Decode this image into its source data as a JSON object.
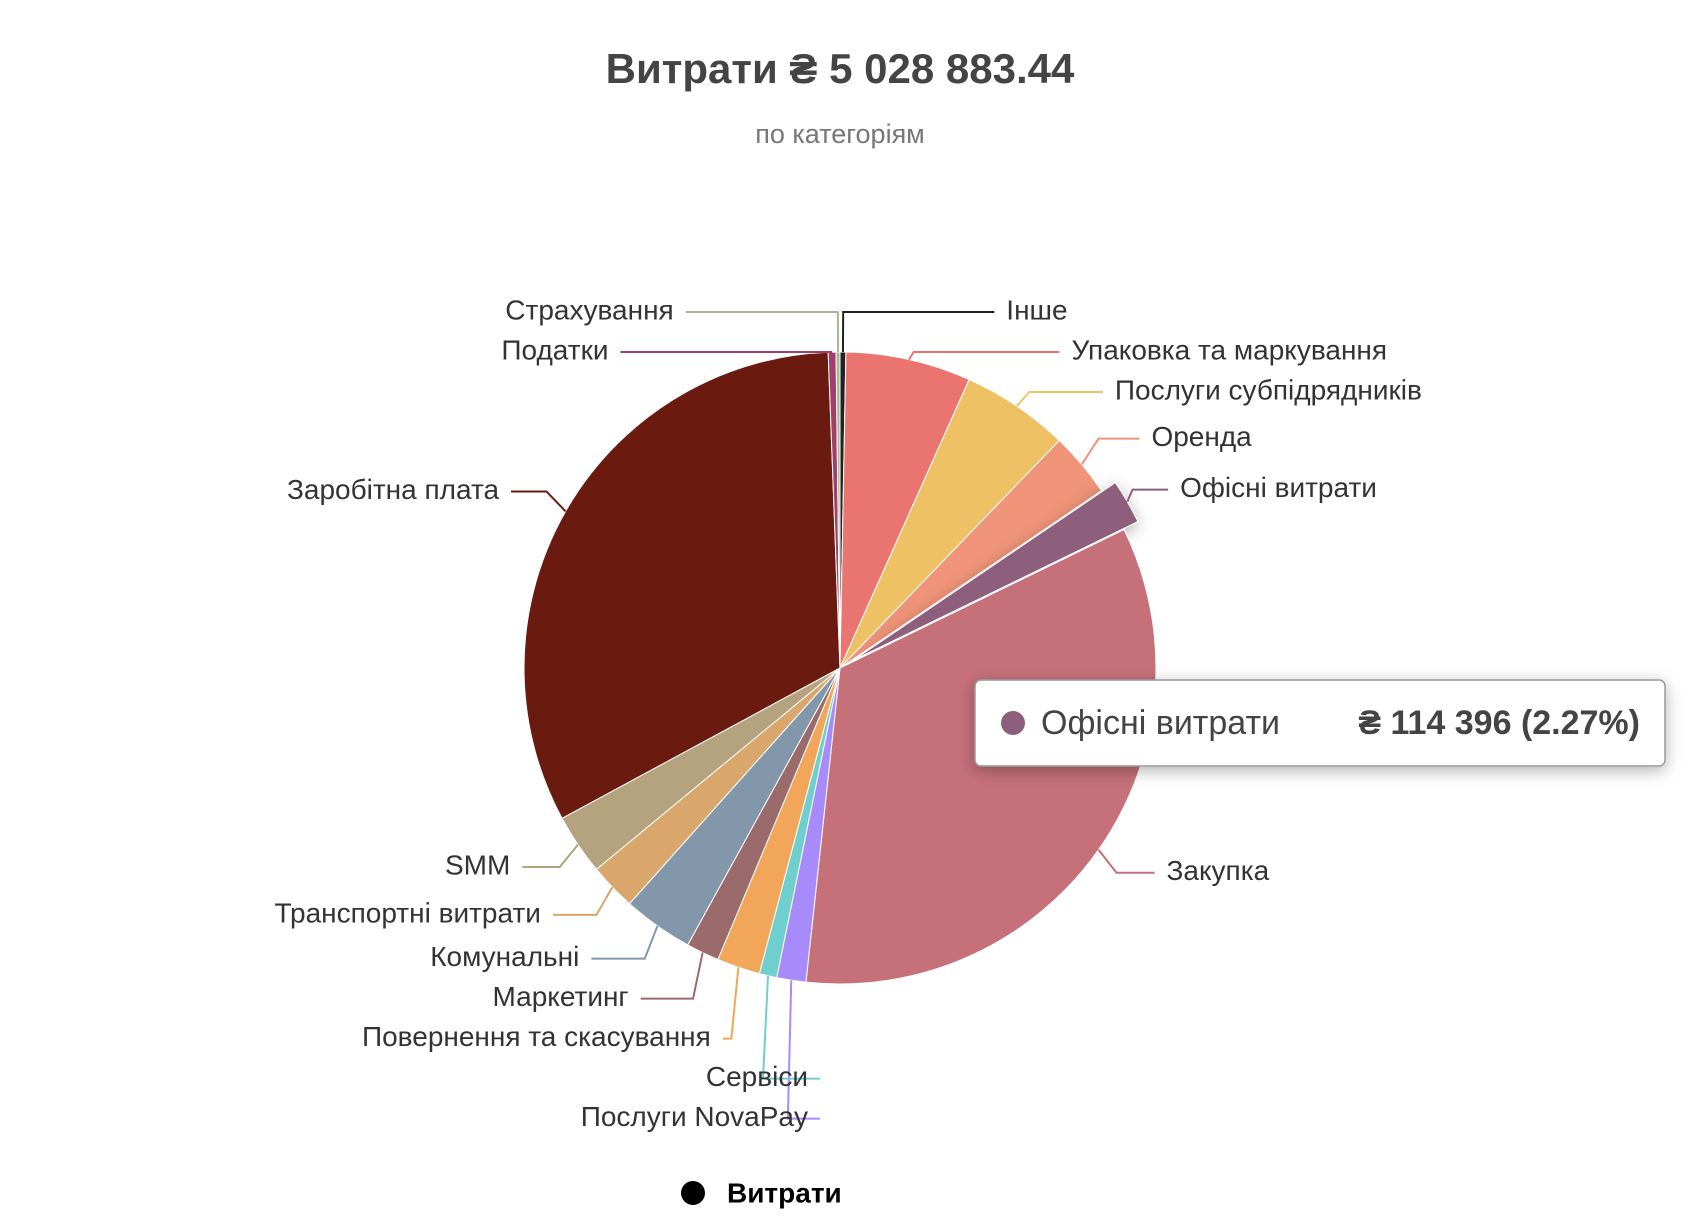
{
  "chart_data": {
    "type": "pie",
    "title": "Витрати ₴ 5 028 883.44",
    "subtitle": "по категоріям",
    "categories": [
      "Інше",
      "Упаковка та маркування",
      "Послуги субпідрядників",
      "Оренда",
      "Офісні витрати",
      "Закупка",
      "Послуги NovaPay",
      "Сервіси",
      "Повернення та скасування",
      "Маркетинг",
      "Комунальні",
      "Транспортні витрати",
      "SMM",
      "Заробітна плата",
      "Податки",
      "Страхування"
    ],
    "series": [
      {
        "name": "Витрати",
        "color": "#000000",
        "colors": [
          "#222222",
          "#ea7470",
          "#eec264",
          "#ef9478",
          "#8e5f7d",
          "#c6707a",
          "#a78bfa",
          "#6fcfcf",
          "#f2a65a",
          "#9b6b6b",
          "#8397aa",
          "#d9a66b",
          "#b5a27f",
          "#6b1a10",
          "#a0406a",
          "#a6b88f"
        ],
        "values": [
          15000,
          322000,
          277000,
          166000,
          114396,
          1706487.44,
          75000,
          45000,
          111000,
          85000,
          181000,
          121000,
          156000,
          1624000,
          20000,
          10000
        ],
        "value_labels": [
          null,
          null,
          null,
          null,
          "₴ 114 396 (2.27%)",
          null,
          null,
          null,
          null,
          null,
          null,
          null,
          null,
          null,
          null,
          null
        ]
      }
    ]
  }
}
